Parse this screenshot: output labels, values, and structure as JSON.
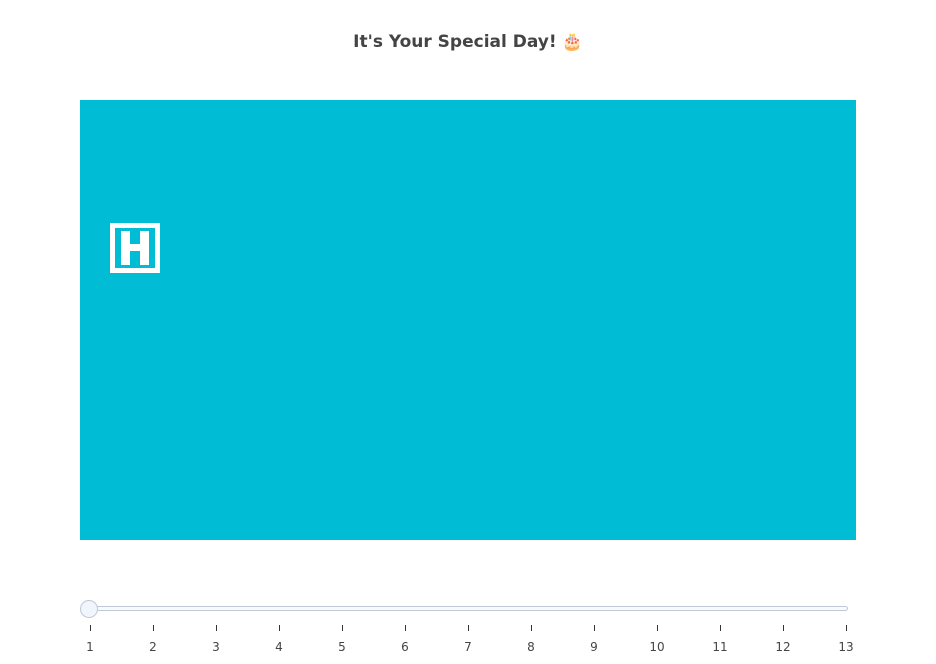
{
  "title": "It's Your Special Day!",
  "title_emoji": "🎂",
  "canvas": {
    "background_color": "#00bcd4",
    "glyph_color": "#ffffff",
    "glyph": "H"
  },
  "slider": {
    "min": 1,
    "max": 13,
    "value": 1,
    "tick_labels": [
      "1",
      "2",
      "3",
      "4",
      "5",
      "6",
      "7",
      "8",
      "9",
      "10",
      "11",
      "12",
      "13"
    ]
  }
}
